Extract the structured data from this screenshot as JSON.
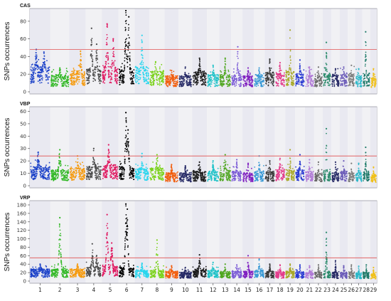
{
  "chart_data": [
    {
      "type": "scatter",
      "title": "CAS",
      "ylabel": "SNPs occurrences",
      "ylim": [
        0,
        92
      ],
      "yticks": [
        0,
        20,
        40,
        60,
        80
      ],
      "threshold": 48,
      "threshold_color": "#e05050",
      "band_colors": [
        "#e9e9f1",
        "#f1f1f4"
      ],
      "chromosomes": [
        {
          "chr": "1",
          "base": 22,
          "peaks": [
            [
              0.3,
              48
            ],
            [
              0.7,
              45
            ]
          ]
        },
        {
          "chr": "2",
          "base": 15,
          "peaks": [
            [
              0.5,
              27
            ]
          ]
        },
        {
          "chr": "3",
          "base": 18,
          "peaks": [
            [
              0.7,
              46
            ]
          ]
        },
        {
          "chr": "4",
          "base": 20,
          "peaks": [
            [
              0.35,
              72
            ],
            [
              0.7,
              54
            ]
          ]
        },
        {
          "chr": "5",
          "base": 22,
          "peaks": [
            [
              0.3,
              77
            ],
            [
              0.7,
              60
            ]
          ]
        },
        {
          "chr": "6",
          "base": 20,
          "peaks": [
            [
              0.45,
              92
            ],
            [
              0.65,
              85
            ]
          ]
        },
        {
          "chr": "7",
          "base": 22,
          "peaks": [
            [
              0.5,
              64
            ]
          ]
        },
        {
          "chr": "8",
          "base": 18,
          "peaks": [
            [
              0.4,
              34
            ]
          ]
        },
        {
          "chr": "9",
          "base": 14,
          "peaks": [
            [
              0.5,
              24
            ]
          ]
        },
        {
          "chr": "10",
          "base": 14,
          "peaks": [
            [
              0.5,
              28
            ]
          ]
        },
        {
          "chr": "11",
          "base": 18,
          "peaks": [
            [
              0.5,
              38
            ]
          ]
        },
        {
          "chr": "12",
          "base": 15,
          "peaks": [
            [
              0.5,
              30
            ]
          ]
        },
        {
          "chr": "13",
          "base": 15,
          "peaks": [
            [
              0.5,
              38
            ]
          ]
        },
        {
          "chr": "14",
          "base": 15,
          "peaks": [
            [
              0.6,
              51
            ]
          ]
        },
        {
          "chr": "15",
          "base": 14,
          "peaks": [
            [
              0.5,
              27
            ]
          ]
        },
        {
          "chr": "16",
          "base": 15,
          "peaks": [
            [
              0.5,
              27
            ]
          ]
        },
        {
          "chr": "17",
          "base": 17,
          "peaks": [
            [
              0.5,
              37
            ]
          ]
        },
        {
          "chr": "18",
          "base": 16,
          "peaks": [
            [
              0.5,
              33
            ]
          ]
        },
        {
          "chr": "19",
          "base": 18,
          "peaks": [
            [
              0.5,
              70
            ]
          ]
        },
        {
          "chr": "20",
          "base": 16,
          "peaks": [
            [
              0.5,
              36
            ]
          ]
        },
        {
          "chr": "21",
          "base": 15,
          "peaks": [
            [
              0.5,
              28
            ]
          ]
        },
        {
          "chr": "22",
          "base": 14,
          "peaks": [
            [
              0.5,
              28
            ]
          ]
        },
        {
          "chr": "23",
          "base": 16,
          "peaks": [
            [
              0.4,
              56
            ]
          ]
        },
        {
          "chr": "24",
          "base": 15,
          "peaks": [
            [
              0.5,
              26
            ]
          ]
        },
        {
          "chr": "25",
          "base": 16,
          "peaks": [
            [
              0.5,
              28
            ]
          ]
        },
        {
          "chr": "26",
          "base": 16,
          "peaks": [
            [
              0.5,
              30
            ]
          ]
        },
        {
          "chr": "27",
          "base": 14,
          "peaks": [
            [
              0.5,
              26
            ]
          ]
        },
        {
          "chr": "28",
          "base": 16,
          "peaks": [
            [
              0.4,
              68
            ]
          ]
        },
        {
          "chr": "29",
          "base": 12,
          "peaks": [
            [
              0.5,
              26
            ]
          ]
        }
      ]
    },
    {
      "type": "scatter",
      "title": "VBP",
      "ylabel": "SNPs occurrences",
      "ylim": [
        0,
        62
      ],
      "yticks": [
        0,
        10,
        20,
        30,
        40,
        50,
        60
      ],
      "threshold": 24,
      "threshold_color": "#e05050",
      "band_colors": [
        "#e9e9f1",
        "#f1f1f4"
      ],
      "chromosomes": [
        {
          "chr": "1",
          "base": 12,
          "peaks": [
            [
              0.4,
              27
            ]
          ]
        },
        {
          "chr": "2",
          "base": 10,
          "peaks": [
            [
              0.5,
              29
            ]
          ]
        },
        {
          "chr": "3",
          "base": 11,
          "peaks": [
            [
              0.5,
              24
            ]
          ]
        },
        {
          "chr": "4",
          "base": 12,
          "peaks": [
            [
              0.5,
              30
            ]
          ]
        },
        {
          "chr": "5",
          "base": 13,
          "peaks": [
            [
              0.4,
              33
            ]
          ]
        },
        {
          "chr": "6",
          "base": 12,
          "peaks": [
            [
              0.45,
              59
            ],
            [
              0.6,
              45
            ]
          ]
        },
        {
          "chr": "7",
          "base": 11,
          "peaks": [
            [
              0.5,
              26
            ]
          ]
        },
        {
          "chr": "8",
          "base": 11,
          "peaks": [
            [
              0.5,
              25
            ]
          ]
        },
        {
          "chr": "9",
          "base": 8,
          "peaks": [
            [
              0.5,
              17
            ]
          ]
        },
        {
          "chr": "10",
          "base": 8,
          "peaks": [
            [
              0.5,
              16
            ]
          ]
        },
        {
          "chr": "11",
          "base": 9,
          "peaks": [
            [
              0.5,
              19
            ]
          ]
        },
        {
          "chr": "12",
          "base": 9,
          "peaks": [
            [
              0.5,
              20
            ]
          ]
        },
        {
          "chr": "13",
          "base": 10,
          "peaks": [
            [
              0.5,
              25
            ]
          ]
        },
        {
          "chr": "14",
          "base": 9,
          "peaks": [
            [
              0.5,
              21
            ]
          ]
        },
        {
          "chr": "15",
          "base": 8,
          "peaks": [
            [
              0.5,
              18
            ]
          ]
        },
        {
          "chr": "16",
          "base": 9,
          "peaks": [
            [
              0.5,
              24
            ]
          ]
        },
        {
          "chr": "17",
          "base": 9,
          "peaks": [
            [
              0.5,
              20
            ]
          ]
        },
        {
          "chr": "18",
          "base": 10,
          "peaks": [
            [
              0.5,
              22
            ]
          ]
        },
        {
          "chr": "19",
          "base": 10,
          "peaks": [
            [
              0.5,
              29
            ]
          ]
        },
        {
          "chr": "20",
          "base": 10,
          "peaks": [
            [
              0.5,
              25
            ]
          ]
        },
        {
          "chr": "21",
          "base": 9,
          "peaks": [
            [
              0.5,
              21
            ]
          ]
        },
        {
          "chr": "22",
          "base": 8,
          "peaks": [
            [
              0.5,
              19
            ]
          ]
        },
        {
          "chr": "23",
          "base": 9,
          "peaks": [
            [
              0.4,
              46
            ]
          ]
        },
        {
          "chr": "24",
          "base": 8,
          "peaks": [
            [
              0.5,
              19
            ]
          ]
        },
        {
          "chr": "25",
          "base": 9,
          "peaks": [
            [
              0.5,
              20
            ]
          ]
        },
        {
          "chr": "26",
          "base": 8,
          "peaks": [
            [
              0.5,
              18
            ]
          ]
        },
        {
          "chr": "27",
          "base": 8,
          "peaks": [
            [
              0.5,
              18
            ]
          ]
        },
        {
          "chr": "28",
          "base": 9,
          "peaks": [
            [
              0.4,
              31
            ]
          ]
        },
        {
          "chr": "29",
          "base": 7,
          "peaks": [
            [
              0.5,
              15
            ]
          ]
        }
      ]
    },
    {
      "type": "scatter",
      "title": "VRP",
      "ylabel": "SNPs occurrences",
      "ylim": [
        0,
        185
      ],
      "yticks": [
        0,
        20,
        40,
        60,
        80,
        100,
        120,
        140,
        160,
        180
      ],
      "threshold": 55,
      "threshold_color": "#e05050",
      "band_colors": [
        "#e9e9f1",
        "#f1f1f4"
      ],
      "chromosomes": [
        {
          "chr": "1",
          "base": 22,
          "peaks": [
            [
              0.5,
              40
            ]
          ]
        },
        {
          "chr": "2",
          "base": 22,
          "peaks": [
            [
              0.5,
              150
            ]
          ]
        },
        {
          "chr": "3",
          "base": 22,
          "peaks": [
            [
              0.5,
              40
            ]
          ]
        },
        {
          "chr": "4",
          "base": 25,
          "peaks": [
            [
              0.4,
              88
            ],
            [
              0.7,
              60
            ]
          ]
        },
        {
          "chr": "5",
          "base": 28,
          "peaks": [
            [
              0.3,
              157
            ],
            [
              0.6,
              90
            ]
          ]
        },
        {
          "chr": "6",
          "base": 25,
          "peaks": [
            [
              0.45,
              182
            ],
            [
              0.55,
              170
            ]
          ]
        },
        {
          "chr": "7",
          "base": 20,
          "peaks": [
            [
              0.5,
              42
            ]
          ]
        },
        {
          "chr": "8",
          "base": 20,
          "peaks": [
            [
              0.5,
              97
            ]
          ]
        },
        {
          "chr": "9",
          "base": 18,
          "peaks": [
            [
              0.5,
              36
            ]
          ]
        },
        {
          "chr": "10",
          "base": 16,
          "peaks": [
            [
              0.5,
              32
            ]
          ]
        },
        {
          "chr": "11",
          "base": 22,
          "peaks": [
            [
              0.5,
              62
            ]
          ]
        },
        {
          "chr": "12",
          "base": 20,
          "peaks": [
            [
              0.5,
              44
            ]
          ]
        },
        {
          "chr": "13",
          "base": 18,
          "peaks": [
            [
              0.5,
              40
            ]
          ]
        },
        {
          "chr": "14",
          "base": 18,
          "peaks": [
            [
              0.5,
              38
            ]
          ]
        },
        {
          "chr": "15",
          "base": 18,
          "peaks": [
            [
              0.5,
              60
            ]
          ]
        },
        {
          "chr": "16",
          "base": 20,
          "peaks": [
            [
              0.5,
              52
            ]
          ]
        },
        {
          "chr": "17",
          "base": 18,
          "peaks": [
            [
              0.5,
              40
            ]
          ]
        },
        {
          "chr": "18",
          "base": 17,
          "peaks": [
            [
              0.5,
              38
            ]
          ]
        },
        {
          "chr": "19",
          "base": 18,
          "peaks": [
            [
              0.5,
              40
            ]
          ]
        },
        {
          "chr": "20",
          "base": 17,
          "peaks": [
            [
              0.5,
              38
            ]
          ]
        },
        {
          "chr": "21",
          "base": 16,
          "peaks": [
            [
              0.5,
              36
            ]
          ]
        },
        {
          "chr": "22",
          "base": 16,
          "peaks": [
            [
              0.5,
              38
            ]
          ]
        },
        {
          "chr": "23",
          "base": 18,
          "peaks": [
            [
              0.4,
              115
            ]
          ]
        },
        {
          "chr": "24",
          "base": 16,
          "peaks": [
            [
              0.5,
              48
            ]
          ]
        },
        {
          "chr": "25",
          "base": 16,
          "peaks": [
            [
              0.5,
              36
            ]
          ]
        },
        {
          "chr": "26",
          "base": 16,
          "peaks": [
            [
              0.5,
              38
            ]
          ]
        },
        {
          "chr": "27",
          "base": 15,
          "peaks": [
            [
              0.5,
              35
            ]
          ]
        },
        {
          "chr": "28",
          "base": 16,
          "peaks": [
            [
              0.5,
              38
            ]
          ]
        },
        {
          "chr": "29",
          "base": 13,
          "peaks": [
            [
              0.5,
              32
            ]
          ]
        }
      ]
    }
  ],
  "chromosome_colors": [
    "#1a40c8",
    "#33b827",
    "#f59a0e",
    "#4a4a4a",
    "#e0185f",
    "#000000",
    "#2ad6ee",
    "#7bd21c",
    "#f25d0c",
    "#262a66",
    "#1a1a1a",
    "#1fc2c8",
    "#4ea61f",
    "#7b5bd6",
    "#8020c0",
    "#3a9ad6",
    "#3a3a3a",
    "#e33a8a",
    "#a8a825",
    "#2a3ad2",
    "#b07ad6",
    "#6a6a6a",
    "#2a8a6a",
    "#262a66",
    "#6a5ab8",
    "#7a7a7a",
    "#2ab8c8",
    "#1f7a6a",
    "#f0c01a"
  ]
}
